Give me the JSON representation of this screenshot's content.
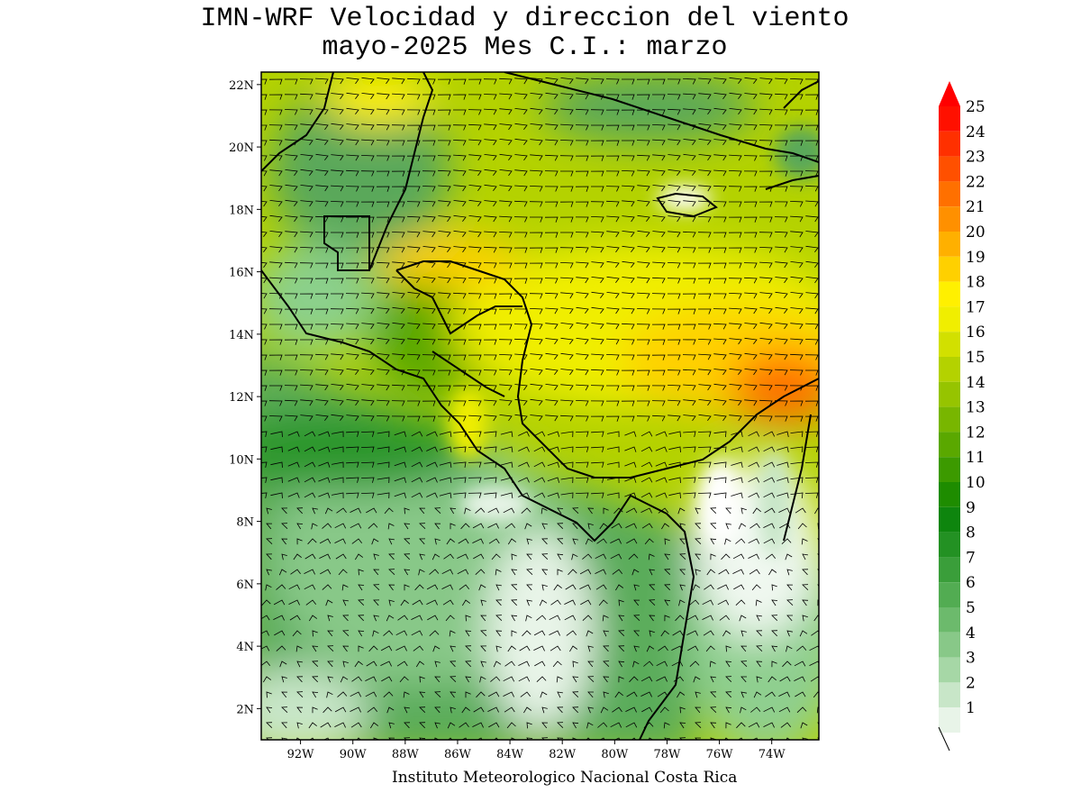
{
  "title": {
    "line1": "IMN-WRF Velocidad y direccion del viento",
    "line2": "mayo-2025 Mes C.I.: marzo"
  },
  "credit": "Instituto Meteorologico Nacional Costa Rica",
  "chart_data": {
    "type": "heatmap",
    "variable": "wind speed and direction (barbs)",
    "lon_range": [
      -93.5,
      -72.2
    ],
    "lat_range": [
      1,
      22.4
    ],
    "lat_ticks": [
      "22N",
      "20N",
      "18N",
      "16N",
      "14N",
      "12N",
      "10N",
      "8N",
      "6N",
      "4N",
      "2N"
    ],
    "lat_tick_values": [
      22,
      20,
      18,
      16,
      14,
      12,
      10,
      8,
      6,
      4,
      2
    ],
    "lon_ticks": [
      "92W",
      "90W",
      "88W",
      "86W",
      "84W",
      "82W",
      "80W",
      "78W",
      "76W",
      "74W"
    ],
    "lon_tick_values": [
      -92,
      -90,
      -88,
      -86,
      -84,
      -82,
      -80,
      -78,
      -76,
      -74
    ],
    "colorbar": {
      "levels": [
        "1",
        "2",
        "3",
        "4",
        "5",
        "6",
        "7",
        "8",
        "9",
        "10",
        "11",
        "12",
        "13",
        "14",
        "15",
        "16",
        "17",
        "18",
        "19",
        "20",
        "21",
        "22",
        "23",
        "24",
        "25"
      ],
      "colors": [
        "#e8f4e8",
        "#c8e6c8",
        "#a6d7a6",
        "#88c888",
        "#6cba6c",
        "#52ac52",
        "#3a9e3a",
        "#239123",
        "#0e850e",
        "#1e8c00",
        "#3c9a00",
        "#5aa800",
        "#78b600",
        "#96c400",
        "#b4d200",
        "#d2e000",
        "#f0ee00",
        "#fff000",
        "#ffd000",
        "#ffb000",
        "#ff9000",
        "#ff7000",
        "#ff5000",
        "#ff3000",
        "#ff1000"
      ],
      "over_color": "#ff0000"
    }
  }
}
